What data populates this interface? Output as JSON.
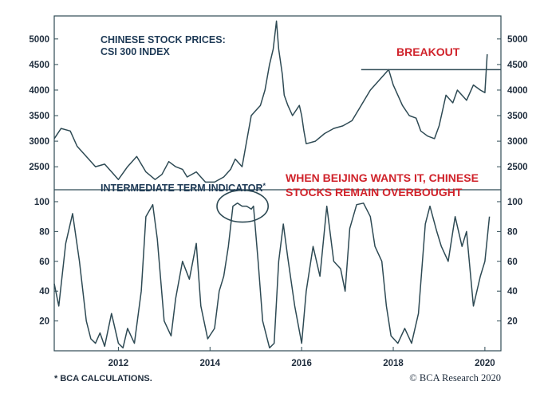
{
  "chart_data": [
    {
      "type": "line",
      "title": "CHINESE STOCK PRICES:",
      "subtitle": "CSI 300 INDEX",
      "annotation": "BREAKOUT",
      "breakout_level": 4400,
      "breakout_start": 2017.3,
      "ylim": [
        2050,
        5450
      ],
      "y_ticks": [
        2500,
        3000,
        3500,
        4000,
        4500,
        5000
      ],
      "color": "#2e4a54",
      "series": [
        {
          "x": [
            2010.6,
            2010.75,
            2010.95,
            2011.1,
            2011.3,
            2011.5,
            2011.7,
            2011.9,
            2012.0,
            2012.2,
            2012.4,
            2012.6,
            2012.8,
            2012.95,
            2013.1,
            2013.25,
            2013.4,
            2013.5,
            2013.7,
            2013.9,
            2014.1,
            2014.3,
            2014.45,
            2014.55,
            2014.7,
            2014.8,
            2014.9,
            2015.0,
            2015.1,
            2015.2,
            2015.3,
            2015.38,
            2015.45,
            2015.5,
            2015.58,
            2015.62,
            2015.7,
            2015.8,
            2015.95,
            2016.0,
            2016.05,
            2016.1,
            2016.3,
            2016.5,
            2016.7,
            2016.9,
            2017.1,
            2017.3,
            2017.5,
            2017.7,
            2017.9,
            2018.0,
            2018.1,
            2018.2,
            2018.35,
            2018.5,
            2018.6,
            2018.75,
            2018.9,
            2019.0,
            2019.15,
            2019.3,
            2019.4,
            2019.6,
            2019.75,
            2019.9,
            2020.0,
            2020.05
          ],
          "y": [
            3050,
            3250,
            3200,
            2900,
            2700,
            2500,
            2550,
            2350,
            2250,
            2500,
            2700,
            2400,
            2250,
            2350,
            2600,
            2500,
            2450,
            2300,
            2400,
            2200,
            2200,
            2300,
            2450,
            2650,
            2500,
            3000,
            3500,
            3600,
            3700,
            4000,
            4500,
            4800,
            5350,
            4800,
            4300,
            3900,
            3700,
            3500,
            3700,
            3500,
            3200,
            2950,
            3000,
            3150,
            3250,
            3300,
            3400,
            3700,
            4000,
            4200,
            4400,
            4100,
            3900,
            3700,
            3500,
            3450,
            3200,
            3100,
            3050,
            3300,
            3900,
            3750,
            4000,
            3800,
            4100,
            4000,
            3950,
            4700
          ]
        }
      ]
    },
    {
      "type": "line",
      "title": "INTERMEDIATE TERM INDICATOR",
      "title_marker": "*",
      "annotation": "WHEN BEIJING WANTS IT, CHINESE STOCKS REMAIN OVERBOUGHT",
      "annotation_lines": [
        "WHEN BEIJING WANTS IT, CHINESE",
        "STOCKS REMAIN OVERBOUGHT"
      ],
      "ylim": [
        0,
        108
      ],
      "y_ticks": [
        20,
        40,
        60,
        80,
        100
      ],
      "x_ticks": [
        2012,
        2014,
        2016,
        2018,
        2020
      ],
      "xlim": [
        2010.6,
        2020.35
      ],
      "color": "#2e4a54",
      "series": [
        {
          "x": [
            2010.6,
            2010.7,
            2010.85,
            2011.0,
            2011.15,
            2011.3,
            2011.4,
            2011.5,
            2011.6,
            2011.7,
            2011.85,
            2012.0,
            2012.1,
            2012.2,
            2012.35,
            2012.5,
            2012.6,
            2012.75,
            2012.85,
            2013.0,
            2013.15,
            2013.25,
            2013.4,
            2013.55,
            2013.7,
            2013.8,
            2013.95,
            2014.1,
            2014.2,
            2014.3,
            2014.4,
            2014.5,
            2014.6,
            2014.7,
            2014.8,
            2014.9,
            2014.95,
            2015.05,
            2015.15,
            2015.3,
            2015.4,
            2015.5,
            2015.6,
            2015.7,
            2015.85,
            2016.0,
            2016.1,
            2016.25,
            2016.4,
            2016.55,
            2016.7,
            2016.85,
            2016.95,
            2017.05,
            2017.2,
            2017.35,
            2017.5,
            2017.6,
            2017.75,
            2017.85,
            2017.95,
            2018.1,
            2018.25,
            2018.4,
            2018.55,
            2018.7,
            2018.8,
            2018.95,
            2019.05,
            2019.2,
            2019.35,
            2019.5,
            2019.6,
            2019.75,
            2019.9,
            2020.0,
            2020.1
          ],
          "y": [
            45,
            30,
            72,
            92,
            60,
            20,
            8,
            5,
            12,
            3,
            25,
            5,
            2,
            15,
            5,
            40,
            90,
            98,
            75,
            20,
            10,
            35,
            60,
            48,
            72,
            30,
            8,
            15,
            40,
            50,
            70,
            97,
            99,
            97,
            97,
            95,
            97,
            60,
            20,
            2,
            5,
            60,
            85,
            62,
            30,
            5,
            40,
            70,
            50,
            97,
            60,
            55,
            40,
            82,
            98,
            99,
            90,
            70,
            60,
            30,
            10,
            5,
            15,
            5,
            25,
            85,
            97,
            80,
            70,
            60,
            90,
            70,
            80,
            30,
            50,
            60,
            90
          ]
        }
      ]
    }
  ],
  "footnote": "* BCA CALCULATIONS.",
  "credit": "© BCA Research 2020"
}
